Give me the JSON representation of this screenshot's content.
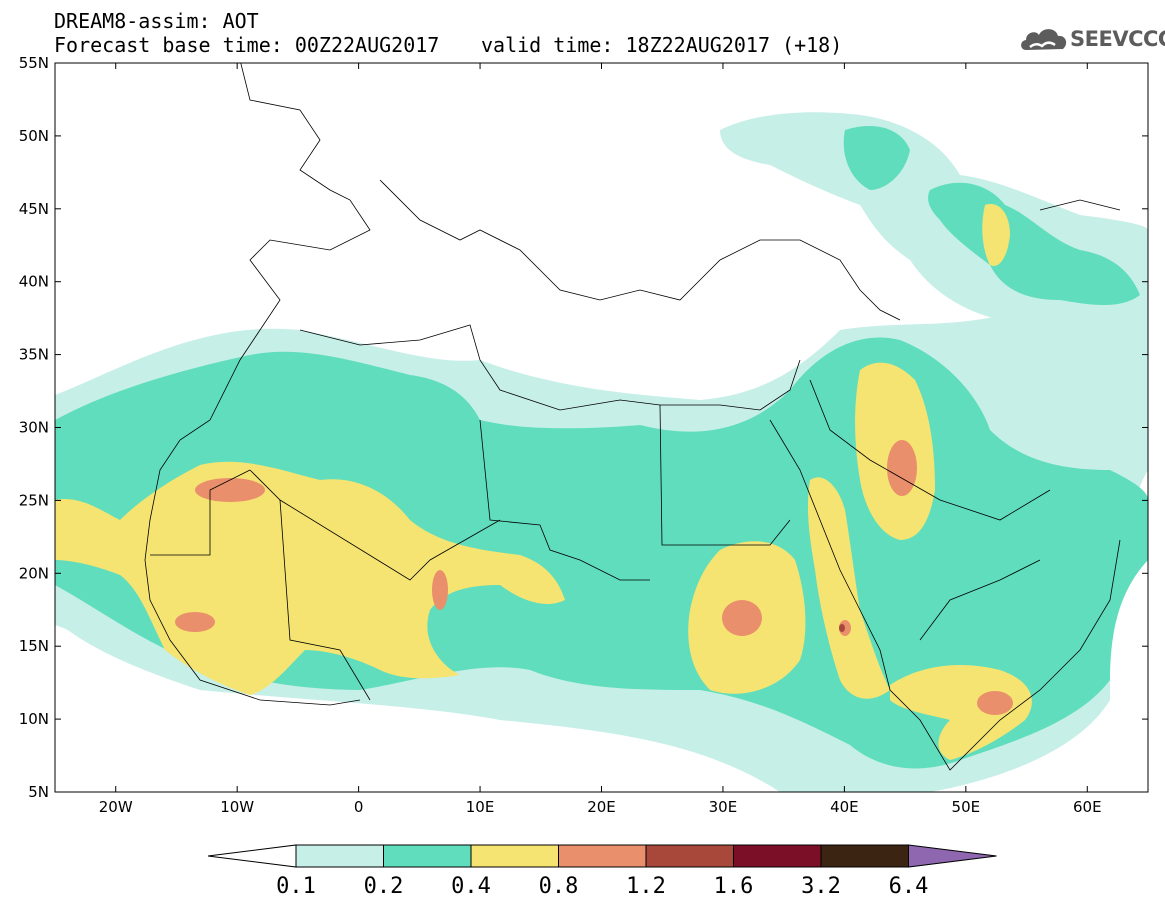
{
  "header": {
    "line1": "DREAM8-assim: AOT",
    "line2_left": "Forecast base time: 00Z22AUG2017",
    "line2_right": "valid time: 18Z22AUG2017 (+18)"
  },
  "logo": {
    "text": "SEEVCCC",
    "icon": "cloud-icon"
  },
  "map": {
    "lon_range": [
      -25,
      65
    ],
    "lat_range": [
      5,
      55
    ],
    "lat_labels": [
      "5N",
      "10N",
      "15N",
      "20N",
      "25N",
      "30N",
      "35N",
      "40N",
      "45N",
      "50N",
      "55N"
    ],
    "lon_labels": [
      "20W",
      "10W",
      "0",
      "10E",
      "20E",
      "30E",
      "40E",
      "50E",
      "60E"
    ],
    "colors": {
      "ocean_land": "#ffffff",
      "c01": "#c6efe8",
      "c02": "#5fddbc",
      "c04": "#f5e472",
      "c08": "#e98f6b",
      "c12": "#a8483a",
      "c16": "#7b0f28",
      "c32": "#3b2512",
      "c64": "#8f67b1"
    }
  },
  "colorbar": {
    "labels": [
      "0.1",
      "0.2",
      "0.4",
      "0.8",
      "1.2",
      "1.6",
      "3.2",
      "6.4"
    ],
    "colors": [
      "#c6efe8",
      "#5fddbc",
      "#f5e472",
      "#e98f6b",
      "#a8483a",
      "#7b0f28",
      "#3b2512"
    ],
    "low_color": "#ffffff",
    "high_color": "#8f67b1"
  }
}
